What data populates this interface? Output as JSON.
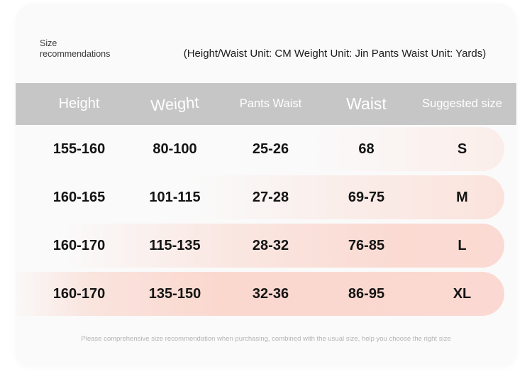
{
  "header": {
    "title_line1": "Size",
    "title_line2": "recommendations",
    "units_note": "(Height/Waist Unit: CM Weight Unit: Jin Pants Waist Unit: Yards)"
  },
  "table": {
    "columns": [
      "Height",
      "Weight",
      "Pants Waist",
      "Waist",
      "Suggested size"
    ],
    "rows": [
      {
        "height": "155-160",
        "weight": "80-100",
        "pants_waist": "25-26",
        "waist": "68",
        "size": "S"
      },
      {
        "height": "160-165",
        "weight": "101-115",
        "pants_waist": "27-28",
        "waist": "69-75",
        "size": "M"
      },
      {
        "height": "160-170",
        "weight": "115-135",
        "pants_waist": "28-32",
        "waist": "76-85",
        "size": "L"
      },
      {
        "height": "160-170",
        "weight": "135-150",
        "pants_waist": "32-36",
        "waist": "86-95",
        "size": "XL"
      }
    ]
  },
  "footer": {
    "note": "Please comprehensive size recommendation when purchasing, combined with the usual size, help you choose the right size"
  },
  "colors": {
    "card_bg": "#fafafa",
    "header_band_bg": "#c6c6c6",
    "header_band_text": "#ffffff",
    "highlight_pink": "#fbd9d2",
    "body_text": "#141414",
    "note_text": "#b3b3b3"
  }
}
